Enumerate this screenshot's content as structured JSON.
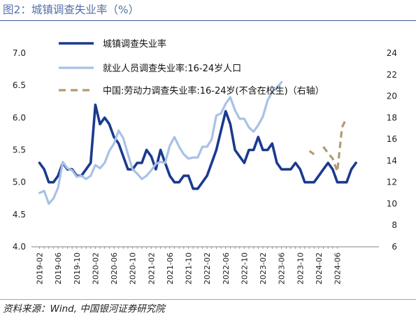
{
  "header": {
    "title": "图2：城镇调查失业率（%）"
  },
  "footer": {
    "source": "资料来源：Wind,  中国银河证券研究院"
  },
  "colors": {
    "urban": "#1a3a8f",
    "youth": "#a9c1e6",
    "youth_ex": "#b39b6f",
    "title": "#5470a8"
  },
  "chart_data": {
    "type": "line",
    "x_tick_labels": [
      "2019-02",
      "2019-06",
      "2019-10",
      "2020-02",
      "2020-06",
      "2020-10",
      "2021-02",
      "2021-06",
      "2021-10",
      "2022-02",
      "2022-06",
      "2022-10",
      "2023-02",
      "2023-06",
      "2023-10",
      "2024-02",
      "2024-06"
    ],
    "y_left": {
      "ylim": [
        4.0,
        7.0
      ],
      "ticks": [
        "4.0",
        "4.5",
        "5.0",
        "5.5",
        "6.0",
        "6.5",
        "7.0"
      ]
    },
    "y_right": {
      "ylim": [
        6,
        24
      ],
      "ticks": [
        "6",
        "8",
        "10",
        "12",
        "14",
        "16",
        "18",
        "20",
        "22",
        "24"
      ]
    },
    "grid": false,
    "legend_position": "top",
    "series": [
      {
        "name": "城镇调查失业率",
        "axis": "left",
        "style": "solid-thick",
        "start": "2019-02",
        "values": [
          5.3,
          5.2,
          5.0,
          5.0,
          5.1,
          5.3,
          5.2,
          5.2,
          5.1,
          5.1,
          5.2,
          5.3,
          6.2,
          5.9,
          6.0,
          5.9,
          5.7,
          5.6,
          5.4,
          5.2,
          5.2,
          5.3,
          5.3,
          5.5,
          5.4,
          5.2,
          5.5,
          5.3,
          5.1,
          5.0,
          5.0,
          5.1,
          5.1,
          4.9,
          4.9,
          5.0,
          5.1,
          5.3,
          5.5,
          5.8,
          6.1,
          5.9,
          5.5,
          5.4,
          5.3,
          5.5,
          5.5,
          5.7,
          5.5,
          5.5,
          5.6,
          5.3,
          5.2,
          5.2,
          5.2,
          5.3,
          5.2,
          5.0,
          5.0,
          5.0,
          5.1,
          5.2,
          5.3,
          5.2,
          5.0,
          5.0,
          5.0,
          5.2,
          5.3
        ]
      },
      {
        "name": "就业人员调查失业率:16-24岁人口",
        "axis": "right",
        "style": "solid",
        "start": "2019-02",
        "values": [
          11.0,
          11.2,
          10.0,
          10.5,
          11.5,
          13.9,
          13.3,
          13.1,
          12.5,
          12.6,
          12.3,
          12.6,
          13.6,
          13.3,
          13.8,
          14.9,
          15.6,
          16.8,
          16.1,
          14.6,
          13.2,
          12.8,
          12.3,
          12.6,
          13.1,
          13.7,
          13.9,
          13.8,
          15.4,
          16.2,
          15.3,
          14.6,
          14.2,
          14.3,
          14.3,
          15.3,
          15.3,
          16.0,
          18.2,
          18.4,
          19.3,
          19.9,
          18.7,
          17.9,
          17.9,
          17.1,
          16.7,
          17.3,
          18.1,
          19.6,
          20.4,
          20.8,
          21.3
        ]
      },
      {
        "name": "中国:劳动力调查失业率:16-24岁(不含在校生)（右轴）",
        "axis": "right",
        "style": "dashed",
        "start": "2023-12",
        "values": [
          14.9,
          14.6,
          null,
          15.3,
          14.7,
          14.2,
          13.0,
          17.1,
          18.0
        ]
      }
    ]
  }
}
